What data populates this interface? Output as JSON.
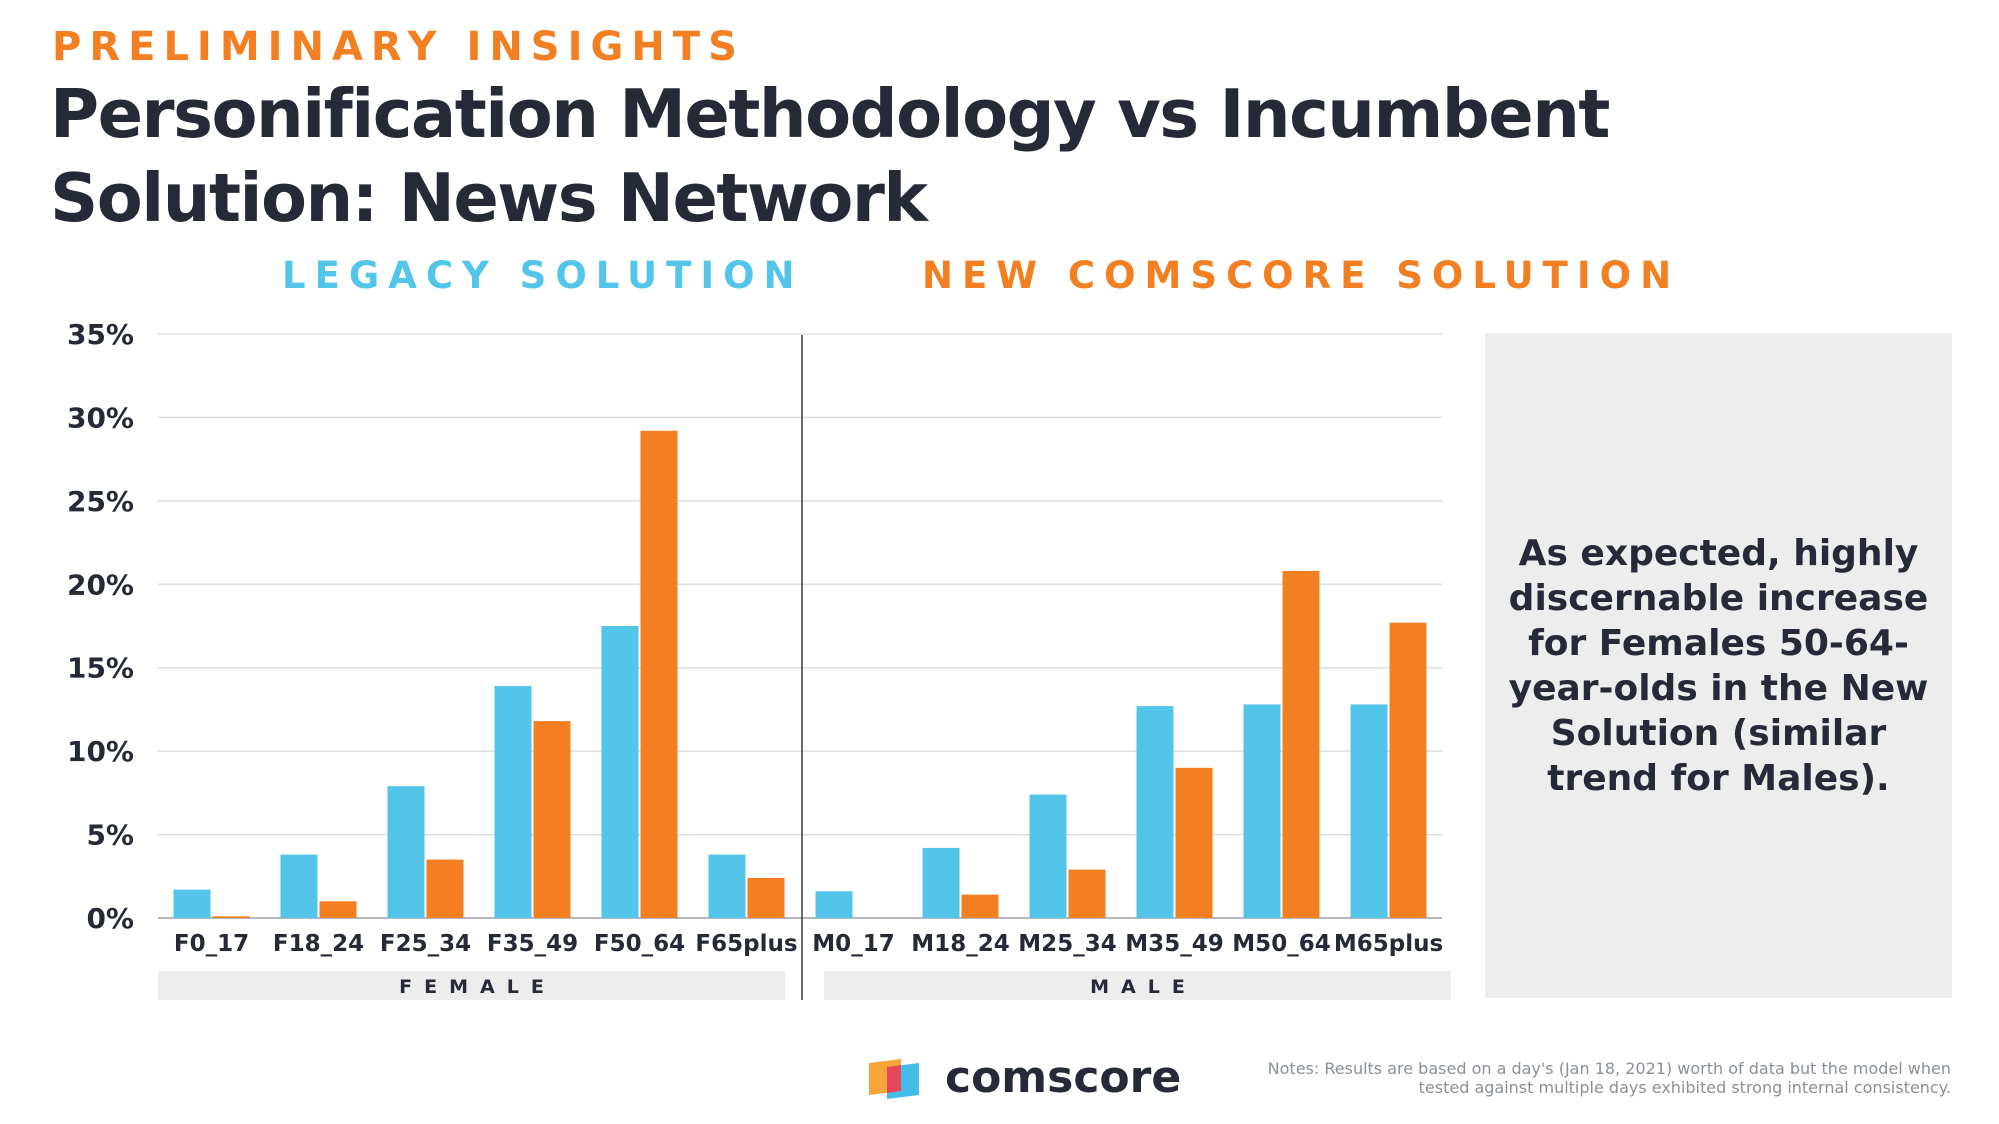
{
  "header": {
    "eyebrow": "PRELIMINARY INSIGHTS",
    "title": "Personification Methodology vs Incumbent Solution: News Network"
  },
  "legend": {
    "legacy_label": "LEGACY SOLUTION",
    "new_label": "NEW COMSCORE SOLUTION"
  },
  "colors": {
    "legacy": "#53c5e8",
    "new": "#f27f22",
    "title": "#262a36",
    "accent": "#f27f22",
    "panel": "#ededed"
  },
  "callout": {
    "text": "As expected, highly discernable increase for Females 50-64-year-olds in the New Solution (similar trend for Males)."
  },
  "branding": {
    "logo_text": "comscore",
    "logo_icon": "comscore-logo-icon"
  },
  "notes": "Notes: Results are based on a day's (Jan 18, 2021) worth of data but the model when tested against multiple days exhibited strong internal consistency.",
  "chart_data": {
    "type": "bar",
    "categories": [
      "F0_17",
      "F18_24",
      "F25_34",
      "F35_49",
      "F50_64",
      "F65plus",
      "M0_17",
      "M18_24",
      "M25_34",
      "M35_49",
      "M50_64",
      "M65plus"
    ],
    "groups": [
      {
        "label": "FEMALE",
        "categories": [
          "F0_17",
          "F18_24",
          "F25_34",
          "F35_49",
          "F50_64",
          "F65plus"
        ]
      },
      {
        "label": "MALE",
        "categories": [
          "M0_17",
          "M18_24",
          "M25_34",
          "M35_49",
          "M50_64",
          "M65plus"
        ]
      }
    ],
    "series": [
      {
        "name": "LEGACY SOLUTION",
        "color": "#53c5e8",
        "values": [
          1.7,
          3.8,
          7.9,
          13.9,
          17.5,
          3.8,
          1.6,
          4.2,
          7.4,
          12.7,
          12.8,
          12.8
        ]
      },
      {
        "name": "NEW COMSCORE SOLUTION",
        "color": "#f27f22",
        "values": [
          0.1,
          1.0,
          3.5,
          11.8,
          29.2,
          2.4,
          0.0,
          1.4,
          2.9,
          9.0,
          20.8,
          17.7
        ]
      }
    ],
    "y_ticks": [
      "0%",
      "5%",
      "10%",
      "15%",
      "20%",
      "25%",
      "30%",
      "35%"
    ],
    "ylim": [
      0,
      35
    ],
    "grid": true,
    "unit": "%"
  }
}
